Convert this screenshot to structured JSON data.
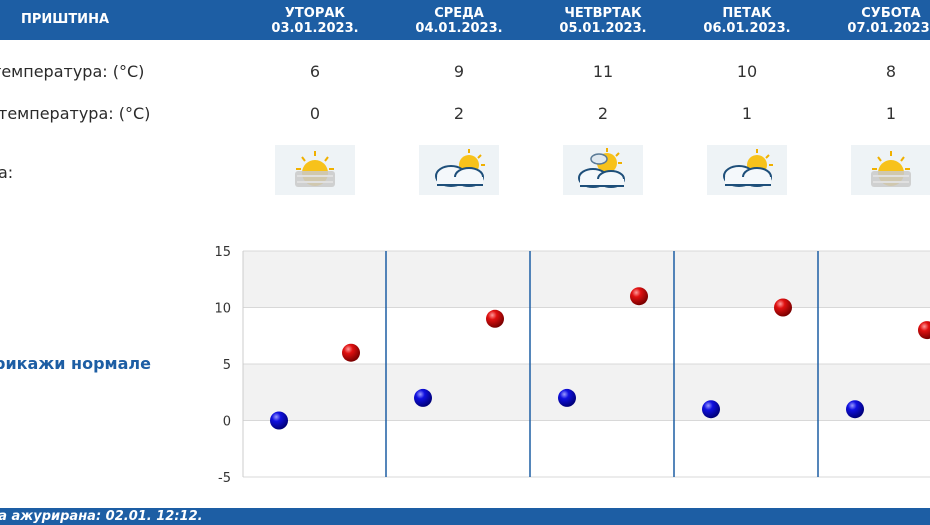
{
  "header": {
    "city": "ПРИШТИНА",
    "days": [
      {
        "name": "УТОРАК",
        "date": "03.01.2023."
      },
      {
        "name": "СРЕДА",
        "date": "04.01.2023."
      },
      {
        "name": "ЧЕТВРТАК",
        "date": "05.01.2023."
      },
      {
        "name": "ПЕТАК",
        "date": "06.01.2023."
      },
      {
        "name": "СУБОТА",
        "date": "07.01.2023."
      }
    ]
  },
  "rows": {
    "max_label": "температура: (°C)",
    "min_label": "температура: (°C)",
    "weather_label": "а:"
  },
  "max_temps": [
    "6",
    "9",
    "11",
    "10",
    "8"
  ],
  "min_temps": [
    "0",
    "2",
    "2",
    "1",
    "1"
  ],
  "weather_icons": [
    "sun-behind-haze-icon",
    "partly-cloudy-icon",
    "sun-behind-clouds-icon",
    "partly-cloudy-icon",
    "sun-behind-haze-icon"
  ],
  "normals_label": "рикажи нормале",
  "footer": {
    "text": "ва ажурирана:  02.01. 12:12."
  },
  "colors": {
    "accent": "#1d5ea4",
    "max_marker": "#cc0000",
    "min_marker": "#0000cc",
    "band": "#f2f2f2"
  },
  "chart_data": {
    "type": "scatter",
    "categories": [
      "03.01.2023.",
      "04.01.2023.",
      "05.01.2023.",
      "06.01.2023.",
      "07.01.2023."
    ],
    "series": [
      {
        "values": [
          6,
          9,
          11,
          10,
          8
        ],
        "color": "#cc0000"
      },
      {
        "values": [
          0,
          2,
          2,
          1,
          1
        ],
        "color": "#0000cc"
      }
    ],
    "ylim": [
      -5,
      15
    ],
    "yticks": [
      "15",
      "10",
      "5",
      "0",
      "-5"
    ],
    "grid": true
  }
}
